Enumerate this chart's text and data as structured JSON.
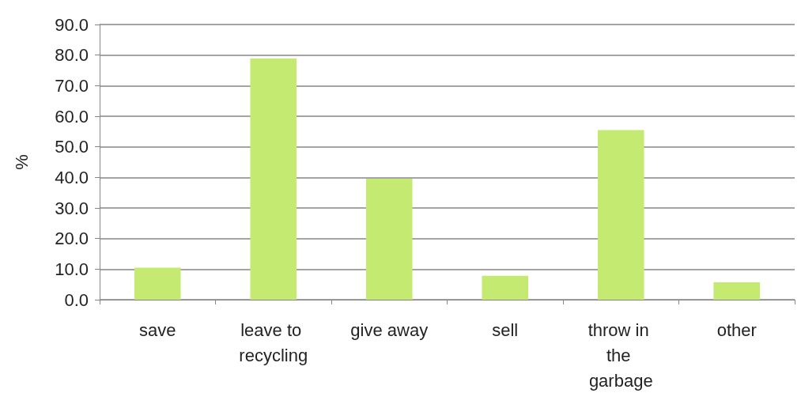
{
  "chart_data": {
    "type": "bar",
    "ylabel": "%",
    "categories": [
      "save",
      "leave to recycling",
      "give away",
      "sell",
      "throw in the garbage",
      "other"
    ],
    "values": [
      10.5,
      78.9,
      39.6,
      7.8,
      55.5,
      5.7
    ],
    "color": "#c4ea72",
    "ylim": [
      0,
      90
    ],
    "yticks": [
      {
        "value": 0,
        "label": "0.0"
      },
      {
        "value": 10,
        "label": "10.0"
      },
      {
        "value": 20,
        "label": "20.0"
      },
      {
        "value": 30,
        "label": "30.0"
      },
      {
        "value": 40,
        "label": "40.0"
      },
      {
        "value": 50,
        "label": "50.0"
      },
      {
        "value": 60,
        "label": "60.0"
      },
      {
        "value": 70,
        "label": "70.0"
      },
      {
        "value": 80,
        "label": "80.0"
      },
      {
        "value": 90,
        "label": "90.0"
      }
    ],
    "grid": "y"
  }
}
